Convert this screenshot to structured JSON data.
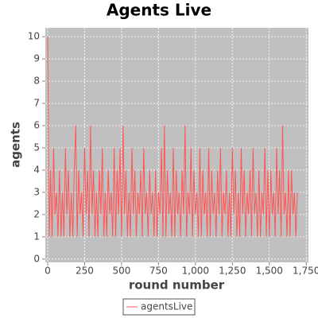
{
  "chart_data": {
    "type": "line",
    "title": "Agents Live",
    "x_label": "round number",
    "y_label": "agents",
    "xlim": [
      -16,
      1765
    ],
    "ylim": [
      -0.15,
      10.4
    ],
    "xticks": [
      0,
      250,
      500,
      750,
      {
        "value": 1000,
        "label": "1,000"
      },
      {
        "value": 1250,
        "label": "1,250"
      },
      {
        "value": 1500,
        "label": "1,500"
      },
      {
        "value": 1750,
        "label": "1,750"
      }
    ],
    "yticks": [
      0,
      1,
      2,
      3,
      4,
      5,
      6,
      7,
      8,
      9,
      10
    ],
    "grid": true,
    "background": "#c0c0c0",
    "legend": "bottom",
    "x": [
      0,
      10,
      20,
      30,
      40,
      50,
      60,
      70,
      80,
      90,
      100,
      110,
      120,
      130,
      140,
      150,
      160,
      170,
      180,
      190,
      200,
      210,
      220,
      230,
      240,
      250,
      260,
      270,
      280,
      290,
      300,
      310,
      320,
      330,
      340,
      350,
      360,
      370,
      380,
      390,
      400,
      410,
      420,
      430,
      440,
      450,
      460,
      470,
      480,
      490,
      500,
      510,
      520,
      530,
      540,
      550,
      560,
      570,
      580,
      590,
      600,
      610,
      620,
      630,
      640,
      650,
      660,
      670,
      680,
      690,
      700,
      710,
      720,
      730,
      740,
      750,
      760,
      770,
      780,
      790,
      800,
      810,
      820,
      830,
      840,
      850,
      860,
      870,
      880,
      890,
      900,
      910,
      920,
      930,
      940,
      950,
      960,
      970,
      980,
      990,
      1000,
      1010,
      1020,
      1030,
      1040,
      1050,
      1060,
      1070,
      1080,
      1090,
      1100,
      1110,
      1120,
      1130,
      1140,
      1150,
      1160,
      1170,
      1180,
      1190,
      1200,
      1210,
      1220,
      1230,
      1240,
      1250,
      1260,
      1270,
      1280,
      1290,
      1300,
      1310,
      1320,
      1330,
      1340,
      1350,
      1360,
      1370,
      1380,
      1390,
      1400,
      1410,
      1420,
      1430,
      1440,
      1450,
      1460,
      1470,
      1480,
      1490,
      1500,
      1510,
      1520,
      1530,
      1540,
      1550,
      1560,
      1570,
      1580,
      1590,
      1600,
      1610,
      1620,
      1630,
      1640,
      1650,
      1660,
      1670,
      1680,
      1690
    ],
    "series": [
      {
        "name": "agentsLive",
        "color": "#ff5555",
        "values": [
          10,
          1,
          4,
          1,
          5,
          2,
          3,
          1,
          4,
          1,
          3,
          1,
          5,
          2,
          4,
          1,
          3,
          1,
          4,
          6,
          1,
          4,
          2,
          3,
          1,
          5,
          2,
          4,
          1,
          6,
          2,
          4,
          1,
          3,
          1,
          4,
          2,
          5,
          1,
          3,
          1,
          4,
          2,
          3,
          1,
          5,
          1,
          4,
          2,
          5,
          1,
          6,
          2,
          4,
          1,
          3,
          1,
          5,
          2,
          4,
          1,
          3,
          2,
          4,
          1,
          5,
          2,
          3,
          1,
          4,
          2,
          3,
          1,
          4,
          1,
          3,
          2,
          5,
          1,
          6,
          1,
          4,
          2,
          3,
          1,
          5,
          1,
          4,
          2,
          3,
          1,
          4,
          2,
          6,
          1,
          3,
          2,
          5,
          1,
          4,
          2,
          3,
          1,
          5,
          1,
          4,
          2,
          3,
          1,
          5,
          1,
          4,
          2,
          3,
          1,
          4,
          2,
          5,
          1,
          3,
          2,
          4,
          1,
          3,
          1,
          5,
          2,
          4,
          1,
          3,
          1,
          5,
          2,
          4,
          1,
          3,
          2,
          4,
          1,
          5,
          2,
          3,
          1,
          4,
          1,
          3,
          2,
          5,
          1,
          4,
          1,
          4,
          2,
          3,
          1,
          5,
          2,
          4,
          1,
          6,
          2,
          3,
          1,
          4,
          1,
          4,
          2,
          3,
          1,
          3
        ]
      }
    ]
  }
}
